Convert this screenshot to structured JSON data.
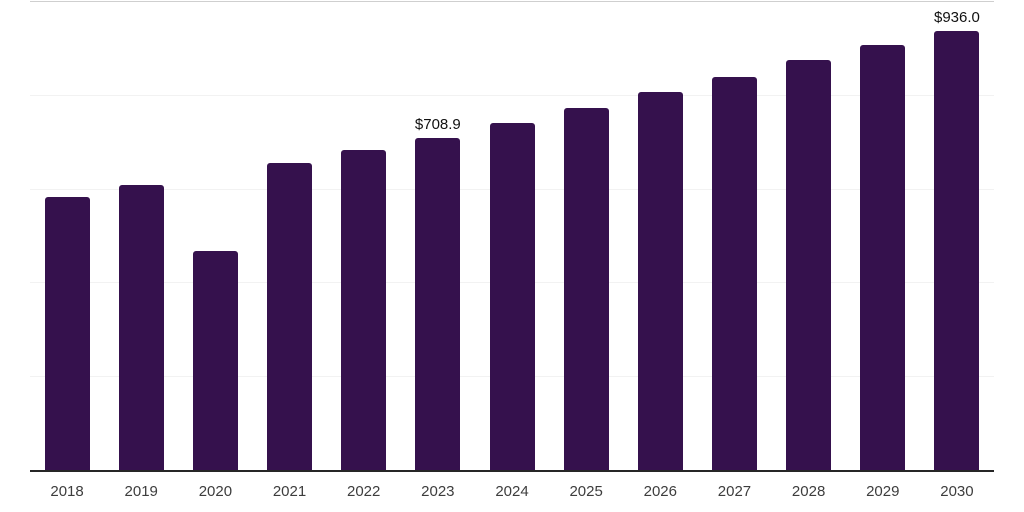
{
  "chart": {
    "background": "#ffffff",
    "bar_color": "#35114D",
    "axis_line_color": "#262626",
    "gridline_color": "#f2f2f2",
    "top_line_color": "#cfcfcf",
    "tick_label_color": "#3d3d3d",
    "value_label_color": "#111111"
  },
  "chart_data": {
    "type": "bar",
    "title": "",
    "xlabel": "",
    "ylabel": "",
    "categories": [
      "2018",
      "2019",
      "2020",
      "2021",
      "2022",
      "2023",
      "2024",
      "2025",
      "2026",
      "2027",
      "2028",
      "2029",
      "2030"
    ],
    "values": [
      583.0,
      607.0,
      468.0,
      655.0,
      682.0,
      708.9,
      739.0,
      771.0,
      805.0,
      838.0,
      875.0,
      906.0,
      936.0
    ],
    "data_labels": [
      "",
      "",
      "",
      "",
      "",
      "$708.9",
      "",
      "",
      "",
      "",
      "",
      "",
      "$936.0"
    ],
    "ylim": [
      0,
      1000
    ],
    "gridline_step": 200,
    "grid": true,
    "legend": false,
    "y_tick_labels_visible": false
  }
}
